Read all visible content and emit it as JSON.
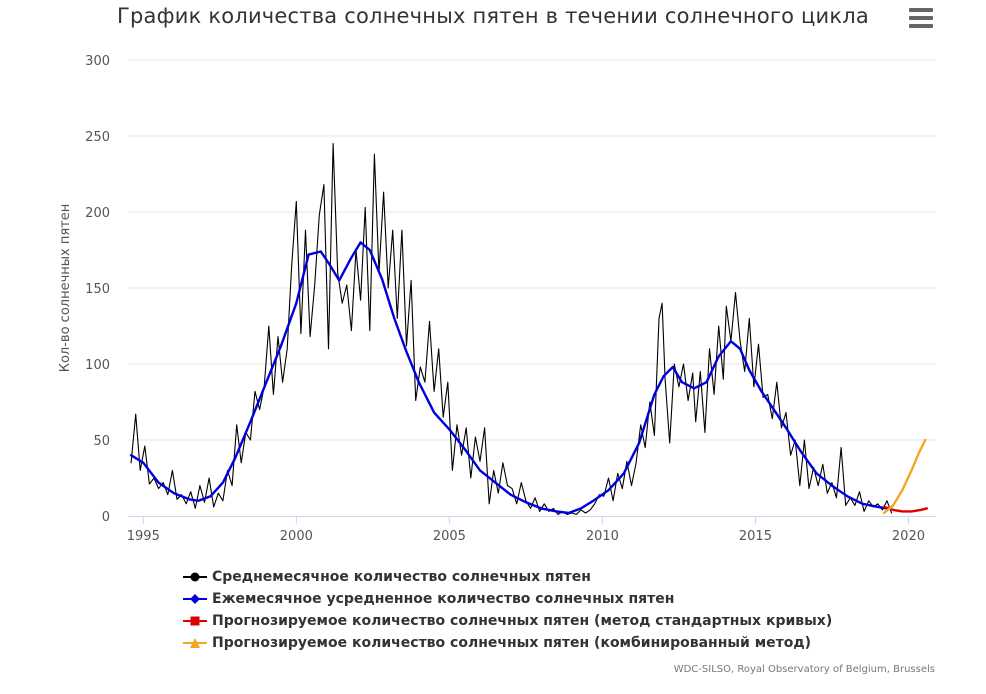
{
  "header": {
    "title": "График количества солнечных пятен в течении солнечного цикла",
    "menu_icon": "hamburger-icon"
  },
  "credits": "WDC-SILSO, Royal Observatory of Belgium, Brussels",
  "colors": {
    "monthly": "#000000",
    "smoothed": "#0000dd",
    "forecast_standard": "#dd0000",
    "forecast_combined": "#f5a623",
    "grid": "#e6e6e6",
    "axis_text": "#555555"
  },
  "chart_data": {
    "type": "line",
    "title": "График количества солнечных пятен в течении солнечного цикла",
    "ylabel": "Кол-во солнечных пятен",
    "xlabel": "",
    "xlim": [
      1994.5,
      2020.9
    ],
    "ylim": [
      0,
      300
    ],
    "x_ticks": [
      1995,
      2000,
      2005,
      2010,
      2015,
      2020
    ],
    "x_tick_labels": [
      "1995",
      "2000",
      "2005",
      "2010",
      "2015",
      "2020"
    ],
    "y_ticks": [
      0,
      50,
      100,
      150,
      200,
      250,
      300
    ],
    "y_tick_labels": [
      "0",
      "50",
      "100",
      "150",
      "200",
      "250",
      "300"
    ],
    "grid": true,
    "legend_position": "bottom",
    "series": [
      {
        "name": "Среднемесячное количество солнечных пятен",
        "color": "#000000",
        "marker": "circle",
        "points": [
          [
            1994.6,
            35
          ],
          [
            1994.75,
            67
          ],
          [
            1994.9,
            30
          ],
          [
            1995.05,
            46
          ],
          [
            1995.2,
            21
          ],
          [
            1995.35,
            25
          ],
          [
            1995.5,
            18
          ],
          [
            1995.65,
            22
          ],
          [
            1995.8,
            14
          ],
          [
            1995.95,
            30
          ],
          [
            1996.1,
            11
          ],
          [
            1996.25,
            14
          ],
          [
            1996.4,
            8
          ],
          [
            1996.55,
            16
          ],
          [
            1996.7,
            5
          ],
          [
            1996.85,
            20
          ],
          [
            1997.0,
            9
          ],
          [
            1997.15,
            25
          ],
          [
            1997.3,
            6
          ],
          [
            1997.45,
            15
          ],
          [
            1997.6,
            10
          ],
          [
            1997.75,
            30
          ],
          [
            1997.9,
            20
          ],
          [
            1998.05,
            60
          ],
          [
            1998.2,
            35
          ],
          [
            1998.35,
            55
          ],
          [
            1998.5,
            50
          ],
          [
            1998.65,
            82
          ],
          [
            1998.8,
            70
          ],
          [
            1998.95,
            85
          ],
          [
            1999.1,
            125
          ],
          [
            1999.25,
            80
          ],
          [
            1999.4,
            118
          ],
          [
            1999.55,
            88
          ],
          [
            1999.7,
            110
          ],
          [
            1999.85,
            165
          ],
          [
            2000.0,
            207
          ],
          [
            2000.15,
            120
          ],
          [
            2000.3,
            188
          ],
          [
            2000.45,
            118
          ],
          [
            2000.6,
            152
          ],
          [
            2000.75,
            198
          ],
          [
            2000.9,
            218
          ],
          [
            2001.05,
            110
          ],
          [
            2001.2,
            245
          ],
          [
            2001.35,
            160
          ],
          [
            2001.5,
            140
          ],
          [
            2001.65,
            152
          ],
          [
            2001.8,
            122
          ],
          [
            2001.95,
            175
          ],
          [
            2002.1,
            142
          ],
          [
            2002.25,
            203
          ],
          [
            2002.4,
            122
          ],
          [
            2002.55,
            238
          ],
          [
            2002.7,
            160
          ],
          [
            2002.85,
            213
          ],
          [
            2003.0,
            150
          ],
          [
            2003.15,
            188
          ],
          [
            2003.3,
            130
          ],
          [
            2003.45,
            188
          ],
          [
            2003.6,
            112
          ],
          [
            2003.75,
            155
          ],
          [
            2003.9,
            76
          ],
          [
            2004.05,
            98
          ],
          [
            2004.2,
            88
          ],
          [
            2004.35,
            128
          ],
          [
            2004.5,
            82
          ],
          [
            2004.65,
            110
          ],
          [
            2004.8,
            65
          ],
          [
            2004.95,
            88
          ],
          [
            2005.1,
            30
          ],
          [
            2005.25,
            60
          ],
          [
            2005.4,
            40
          ],
          [
            2005.55,
            58
          ],
          [
            2005.7,
            25
          ],
          [
            2005.85,
            52
          ],
          [
            2006.0,
            36
          ],
          [
            2006.15,
            58
          ],
          [
            2006.3,
            8
          ],
          [
            2006.45,
            30
          ],
          [
            2006.6,
            15
          ],
          [
            2006.75,
            35
          ],
          [
            2006.9,
            20
          ],
          [
            2007.05,
            18
          ],
          [
            2007.2,
            8
          ],
          [
            2007.35,
            22
          ],
          [
            2007.5,
            10
          ],
          [
            2007.65,
            5
          ],
          [
            2007.8,
            12
          ],
          [
            2007.95,
            3
          ],
          [
            2008.1,
            8
          ],
          [
            2008.25,
            3
          ],
          [
            2008.4,
            5
          ],
          [
            2008.55,
            1
          ],
          [
            2008.7,
            3
          ],
          [
            2008.85,
            1
          ],
          [
            2009.0,
            2
          ],
          [
            2009.15,
            1
          ],
          [
            2009.3,
            4
          ],
          [
            2009.45,
            2
          ],
          [
            2009.6,
            4
          ],
          [
            2009.75,
            8
          ],
          [
            2009.9,
            14
          ],
          [
            2010.05,
            13
          ],
          [
            2010.2,
            25
          ],
          [
            2010.35,
            10
          ],
          [
            2010.5,
            28
          ],
          [
            2010.65,
            18
          ],
          [
            2010.8,
            36
          ],
          [
            2010.95,
            20
          ],
          [
            2011.1,
            35
          ],
          [
            2011.25,
            60
          ],
          [
            2011.4,
            45
          ],
          [
            2011.55,
            75
          ],
          [
            2011.7,
            53
          ],
          [
            2011.85,
            130
          ],
          [
            2011.95,
            140
          ],
          [
            2012.05,
            90
          ],
          [
            2012.2,
            48
          ],
          [
            2012.35,
            100
          ],
          [
            2012.5,
            85
          ],
          [
            2012.65,
            100
          ],
          [
            2012.8,
            76
          ],
          [
            2012.95,
            94
          ],
          [
            2013.05,
            62
          ],
          [
            2013.2,
            95
          ],
          [
            2013.35,
            55
          ],
          [
            2013.5,
            110
          ],
          [
            2013.65,
            80
          ],
          [
            2013.8,
            125
          ],
          [
            2013.95,
            90
          ],
          [
            2014.05,
            138
          ],
          [
            2014.2,
            115
          ],
          [
            2014.35,
            147
          ],
          [
            2014.5,
            115
          ],
          [
            2014.65,
            95
          ],
          [
            2014.8,
            130
          ],
          [
            2014.95,
            85
          ],
          [
            2015.1,
            113
          ],
          [
            2015.25,
            78
          ],
          [
            2015.4,
            80
          ],
          [
            2015.55,
            64
          ],
          [
            2015.7,
            88
          ],
          [
            2015.85,
            58
          ],
          [
            2016.0,
            68
          ],
          [
            2016.15,
            40
          ],
          [
            2016.3,
            50
          ],
          [
            2016.45,
            20
          ],
          [
            2016.6,
            50
          ],
          [
            2016.75,
            18
          ],
          [
            2016.9,
            32
          ],
          [
            2017.05,
            20
          ],
          [
            2017.2,
            34
          ],
          [
            2017.35,
            15
          ],
          [
            2017.5,
            22
          ],
          [
            2017.65,
            12
          ],
          [
            2017.8,
            45
          ],
          [
            2017.95,
            7
          ],
          [
            2018.1,
            12
          ],
          [
            2018.25,
            7
          ],
          [
            2018.4,
            16
          ],
          [
            2018.55,
            3
          ],
          [
            2018.7,
            10
          ],
          [
            2018.85,
            6
          ],
          [
            2019.0,
            8
          ],
          [
            2019.15,
            4
          ],
          [
            2019.3,
            10
          ],
          [
            2019.45,
            2
          ]
        ]
      },
      {
        "name": "Ежемесячное усредненное количество солнечных пятен",
        "color": "#0000dd",
        "marker": "diamond",
        "points": [
          [
            1994.6,
            40
          ],
          [
            1995.0,
            35
          ],
          [
            1995.5,
            22
          ],
          [
            1996.0,
            15
          ],
          [
            1996.5,
            11
          ],
          [
            1996.8,
            10
          ],
          [
            1997.2,
            13
          ],
          [
            1997.6,
            22
          ],
          [
            1998.0,
            38
          ],
          [
            1998.5,
            62
          ],
          [
            1999.0,
            87
          ],
          [
            1999.5,
            112
          ],
          [
            2000.0,
            140
          ],
          [
            2000.4,
            172
          ],
          [
            2000.8,
            174
          ],
          [
            2001.1,
            165
          ],
          [
            2001.4,
            155
          ],
          [
            2001.8,
            170
          ],
          [
            2002.1,
            180
          ],
          [
            2002.4,
            175
          ],
          [
            2002.8,
            156
          ],
          [
            2003.2,
            130
          ],
          [
            2003.6,
            108
          ],
          [
            2004.0,
            88
          ],
          [
            2004.5,
            68
          ],
          [
            2005.0,
            57
          ],
          [
            2005.5,
            44
          ],
          [
            2006.0,
            30
          ],
          [
            2006.5,
            22
          ],
          [
            2007.0,
            14
          ],
          [
            2007.5,
            9
          ],
          [
            2008.0,
            5
          ],
          [
            2008.5,
            3
          ],
          [
            2008.9,
            2
          ],
          [
            2009.3,
            5
          ],
          [
            2009.7,
            10
          ],
          [
            2010.2,
            17
          ],
          [
            2010.7,
            28
          ],
          [
            2011.2,
            48
          ],
          [
            2011.7,
            80
          ],
          [
            2012.0,
            92
          ],
          [
            2012.3,
            98
          ],
          [
            2012.6,
            88
          ],
          [
            2013.0,
            84
          ],
          [
            2013.4,
            88
          ],
          [
            2013.8,
            105
          ],
          [
            2014.2,
            115
          ],
          [
            2014.5,
            110
          ],
          [
            2014.8,
            96
          ],
          [
            2015.2,
            82
          ],
          [
            2015.6,
            70
          ],
          [
            2016.0,
            58
          ],
          [
            2016.5,
            42
          ],
          [
            2017.0,
            28
          ],
          [
            2017.5,
            20
          ],
          [
            2018.0,
            13
          ],
          [
            2018.5,
            8
          ],
          [
            2019.0,
            6
          ],
          [
            2019.3,
            5
          ]
        ]
      },
      {
        "name": "Прогнозируемое количество солнечных пятен (метод стандартных кривых)",
        "color": "#dd0000",
        "marker": "square",
        "points": [
          [
            2019.2,
            6
          ],
          [
            2019.5,
            4
          ],
          [
            2019.8,
            3
          ],
          [
            2020.1,
            3
          ],
          [
            2020.4,
            4
          ],
          [
            2020.6,
            5
          ]
        ]
      },
      {
        "name": "Прогнозируемое количество солнечных пятен (комбинированный метод)",
        "color": "#f5a623",
        "marker": "triangle",
        "points": [
          [
            2019.2,
            2
          ],
          [
            2019.5,
            7
          ],
          [
            2019.8,
            17
          ],
          [
            2020.1,
            30
          ],
          [
            2020.35,
            42
          ],
          [
            2020.55,
            50
          ]
        ]
      }
    ]
  }
}
